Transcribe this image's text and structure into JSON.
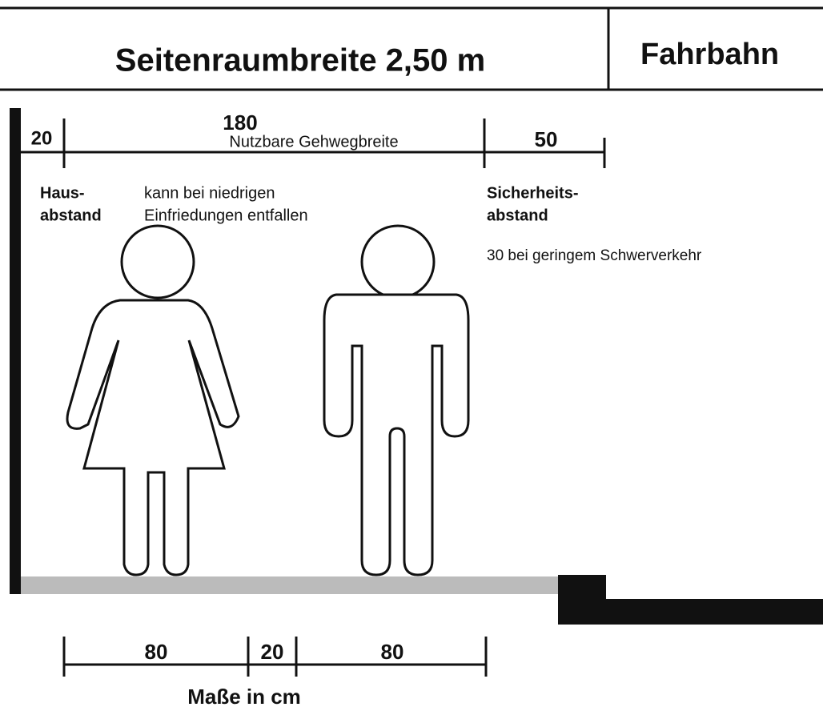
{
  "header": {
    "left": "Seitenraumbreite 2,50 m",
    "right": "Fahrbahn"
  },
  "top_dimensions": {
    "house_gap": "20",
    "usable_width": "180",
    "usable_label": "Nutzbare Gehwegbreite",
    "safety_gap": "50"
  },
  "labels": {
    "house": [
      "Haus-",
      "abstand"
    ],
    "note": [
      "kann bei niedrigen",
      "Einfriedungen entfallen"
    ],
    "safety": [
      "Sicherheits-",
      "abstand"
    ],
    "safety_note": "30 bei geringem Schwerverkehr"
  },
  "bottom_dimensions": {
    "left": "80",
    "middle": "20",
    "right": "80",
    "unit_note": "Maße in cm"
  }
}
